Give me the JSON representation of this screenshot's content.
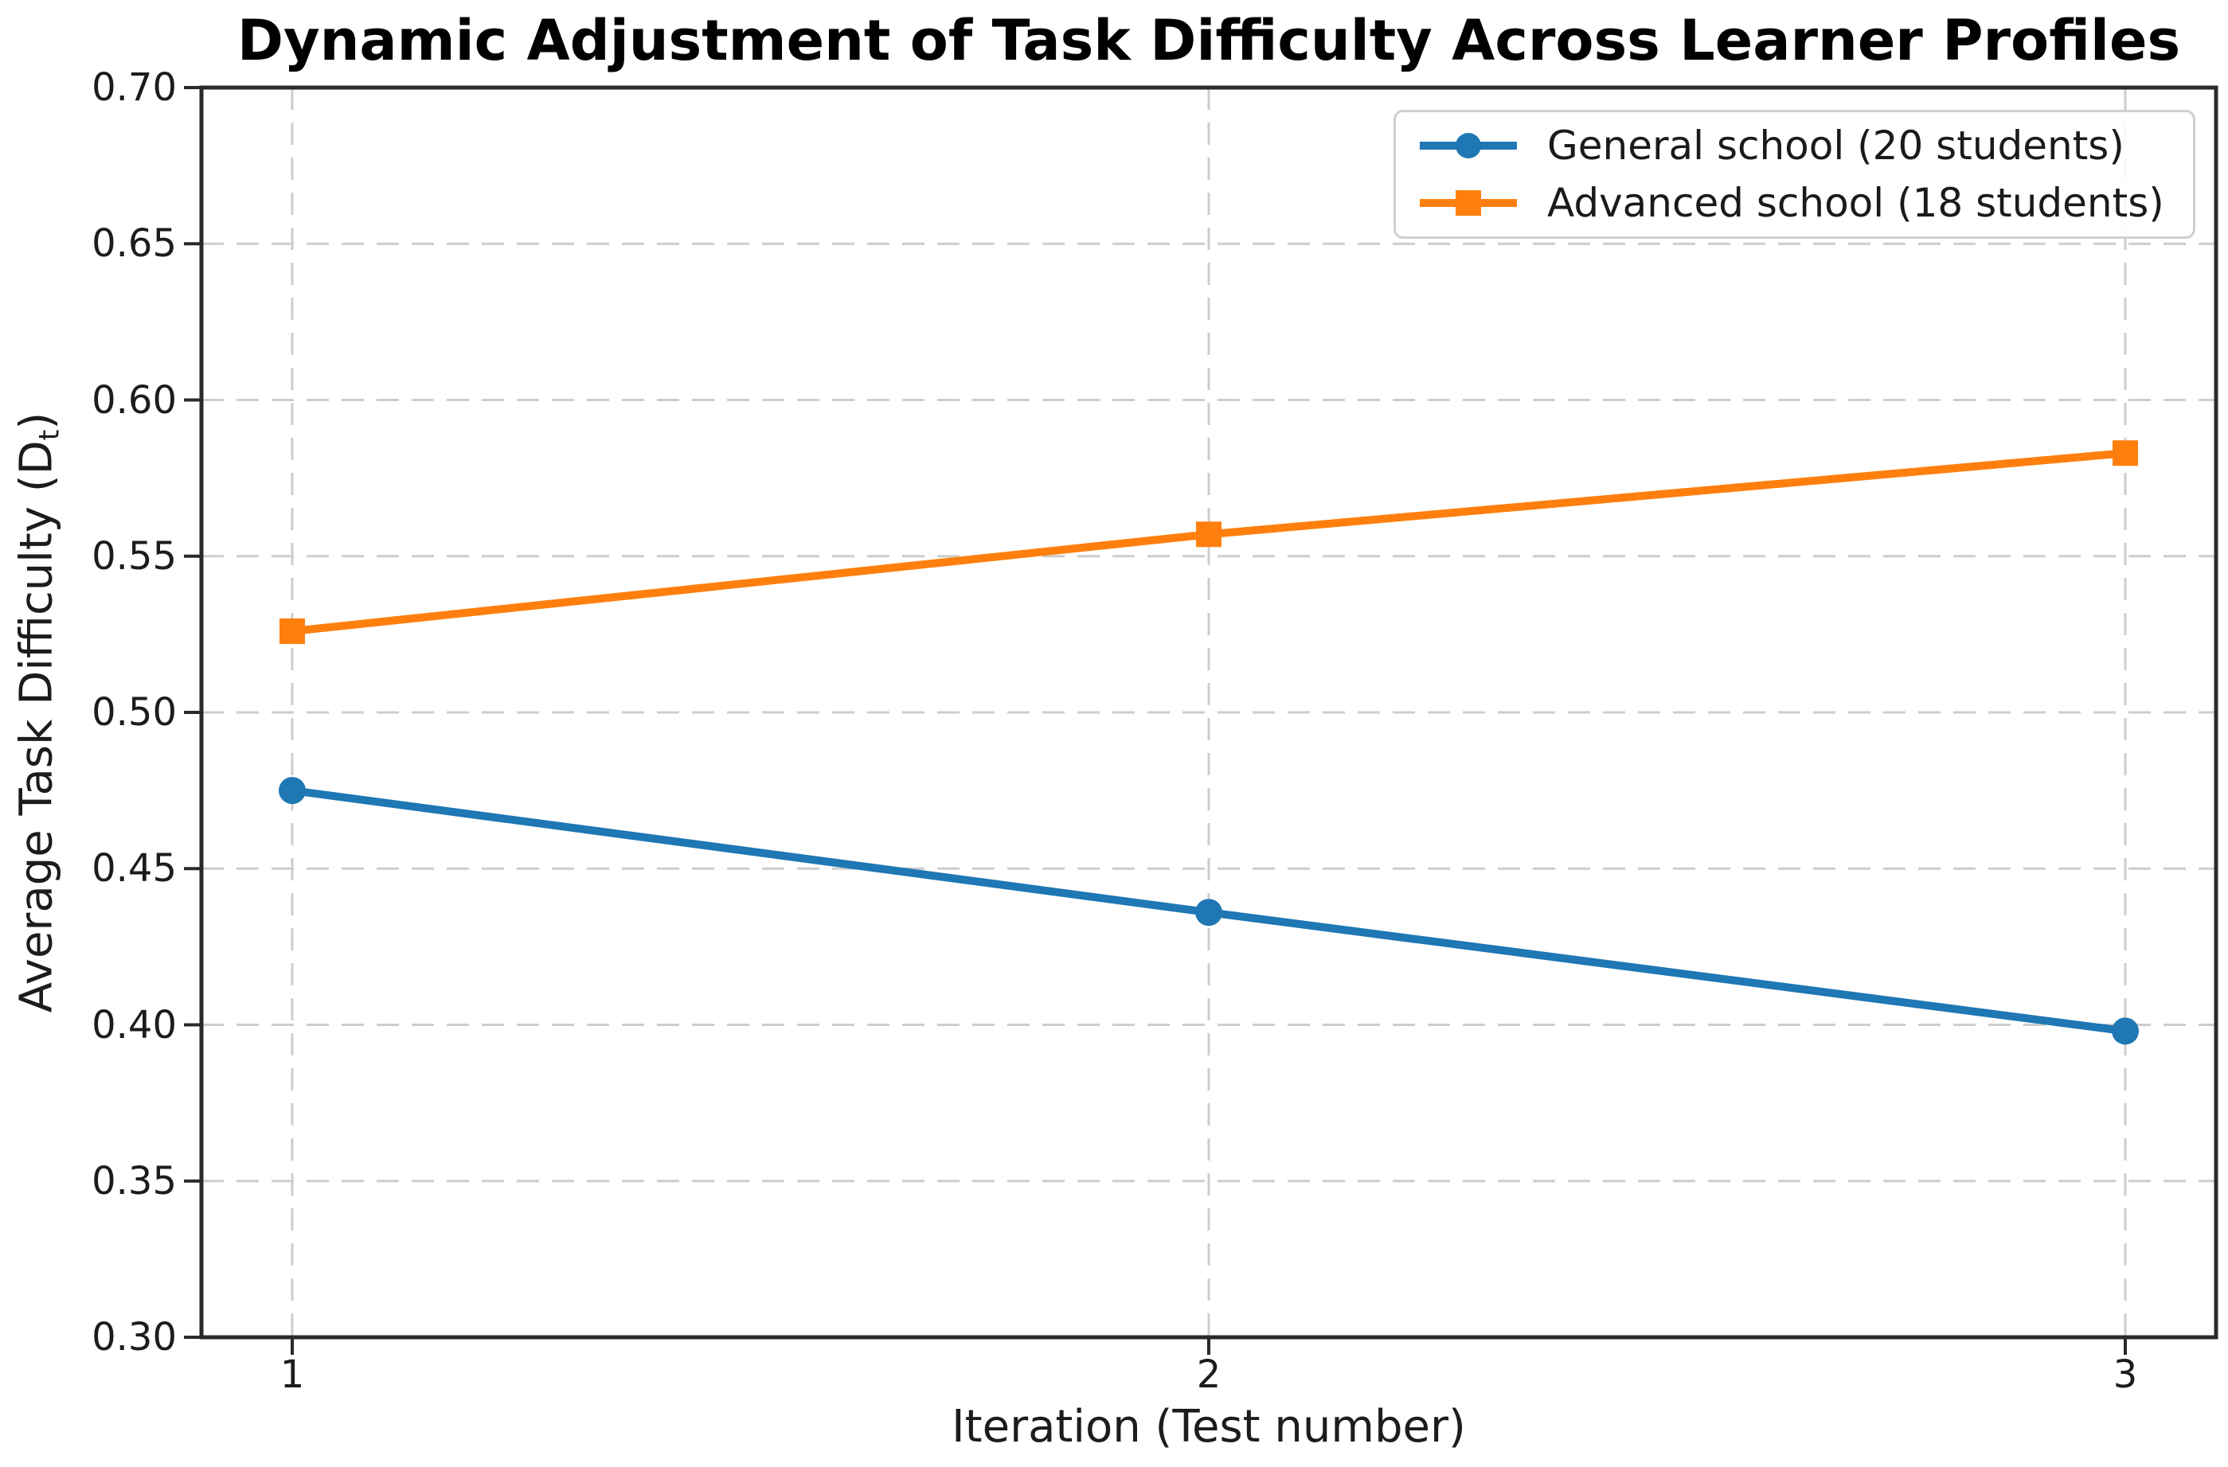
{
  "page": {
    "background": "#ffffff"
  },
  "chart_data": {
    "type": "line",
    "title": "Dynamic Adjustment of Task Difficulty Across Learner Profiles",
    "xlabel": "Iteration (Test number)",
    "ylabel": "Average Task Difficulty (Dₜ)",
    "ylabel_parts": {
      "prefix": "Average Task Difficulty (D",
      "sub": "t",
      "suffix": ")"
    },
    "x": [
      1,
      2,
      3
    ],
    "xtick_labels": [
      "1",
      "2",
      "3"
    ],
    "ytick_labels": [
      "0.70",
      "0.65",
      "0.60",
      "0.55",
      "0.50",
      "0.45",
      "0.40",
      "0.35",
      "0.30"
    ],
    "ylim": [
      0.3,
      0.7
    ],
    "grid": {
      "style": "dashed",
      "color": "#cdcdcd",
      "vertical": true,
      "horizontal": true
    },
    "legend": {
      "position": "upper right"
    },
    "series": [
      {
        "name": "General school (20 students)",
        "color": "#1f77b4",
        "marker": "circle",
        "values": [
          0.475,
          0.436,
          0.398
        ]
      },
      {
        "name": "Advanced school (18 students)",
        "color": "#ff7f0e",
        "marker": "square",
        "values": [
          0.526,
          0.557,
          0.583
        ]
      }
    ]
  }
}
